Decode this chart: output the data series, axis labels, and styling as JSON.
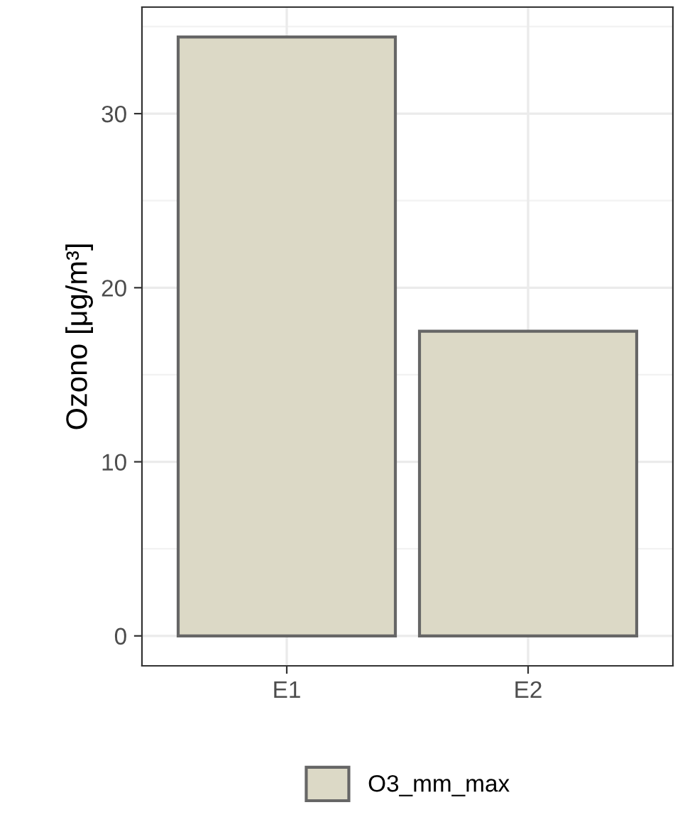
{
  "chart_data": {
    "type": "bar",
    "ylabel": "Ozono [μg/m³]",
    "categories": [
      "E1",
      "E2"
    ],
    "series": [
      {
        "name": "O3_mm_max",
        "color": "#dcd9c6",
        "values": [
          34.4,
          17.5
        ]
      }
    ],
    "ylim": [
      -1.72,
      36.12
    ],
    "yticks": [
      0,
      10,
      20,
      30
    ],
    "grid": true,
    "legend": "bottom"
  }
}
